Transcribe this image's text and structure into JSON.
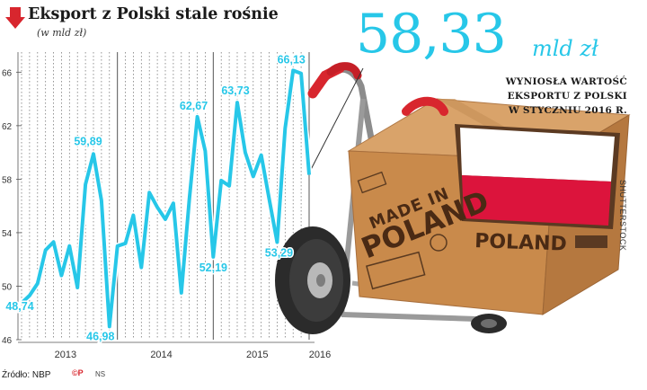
{
  "header": {
    "title": "Eksport z Polski stale rośnie",
    "subtitle": "(w mld zł)"
  },
  "highlight": {
    "value": "58,33",
    "unit": "mld zł",
    "description_lines": [
      "WYNIOSŁA WARTOŚĆ",
      "EKSPORTU Z POLSKI",
      "W STYCZNIU 2016 R."
    ]
  },
  "footer": {
    "source": "Źródło: NBP",
    "logo_text": "©P",
    "logo_suffix": "NS"
  },
  "illustration": {
    "box_text_1": "MADE IN",
    "box_text_2": "POLAND",
    "box_label": "POLAND",
    "credit": "SHUTTERSTOCK",
    "flag_colors": [
      "#ffffff",
      "#dc143c"
    ]
  },
  "colors": {
    "line": "#27c7e8",
    "arrow": "#d8262e",
    "grid": "#7a7a7a",
    "box": "#c98a4b",
    "tick_label": "#333333"
  },
  "chart_data": {
    "type": "line",
    "title": "Eksport z Polski stale rośnie",
    "subtitle": "(w mld zł)",
    "ylim": [
      46,
      67.5
    ],
    "yticks": [
      46,
      50,
      54,
      58,
      62,
      66
    ],
    "x_year_labels": [
      "2013",
      "2014",
      "2015",
      "2016"
    ],
    "grid": "vertical dotted lines per month",
    "series": [
      {
        "values": [
          48.74,
          49.3,
          50.2,
          52.7,
          53.3,
          50.8,
          53.0,
          49.9,
          57.6,
          59.89,
          56.4,
          46.98,
          53.0,
          53.2,
          55.3,
          51.4,
          57.0,
          55.9,
          55.0,
          56.2,
          49.5,
          56.5,
          62.67,
          60.1,
          52.19,
          57.9,
          57.5,
          63.73,
          60.0,
          58.2,
          59.8,
          56.5,
          53.29,
          61.8,
          66.13,
          65.9,
          58.33
        ]
      }
    ],
    "labeled_points": [
      {
        "index": 0,
        "text": "48,74"
      },
      {
        "index": 9,
        "text": "59,89"
      },
      {
        "index": 11,
        "text": "46,98"
      },
      {
        "index": 22,
        "text": "62,67"
      },
      {
        "index": 24,
        "text": "52,19"
      },
      {
        "index": 27,
        "text": "63,73"
      },
      {
        "index": 32,
        "text": "53,29"
      },
      {
        "index": 34,
        "text": "66,13"
      }
    ]
  }
}
